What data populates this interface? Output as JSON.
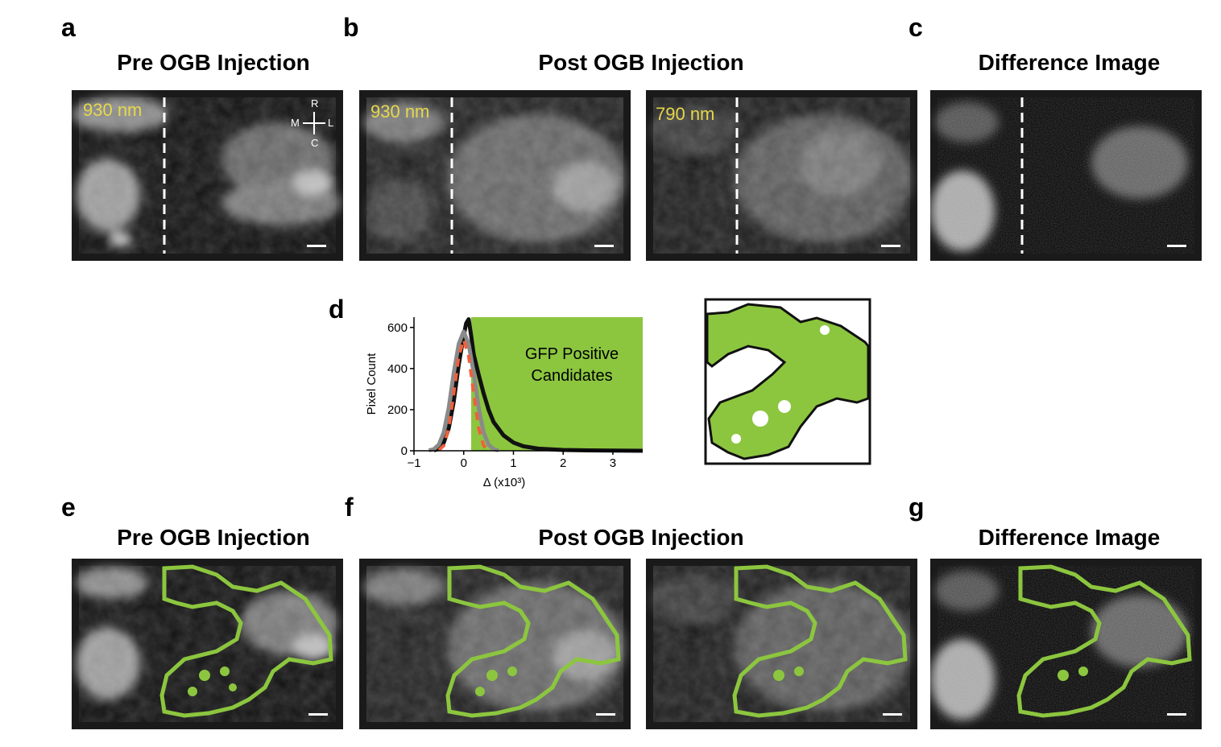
{
  "panel_letters": {
    "a": "a",
    "b": "b",
    "c": "c",
    "d": "d",
    "e": "e",
    "f": "f",
    "g": "g"
  },
  "titles": {
    "pre_top": "Pre OGB Injection",
    "post_top": "Post OGB Injection",
    "diff_top": "Difference Image",
    "pre_bottom": "Pre OGB Injection",
    "post_bottom": "Post OGB Injection",
    "diff_bottom": "Difference Image"
  },
  "wavelengths": {
    "a": "930 nm",
    "b1": "930 nm",
    "b2": "790 nm"
  },
  "compass": {
    "up": "R",
    "down": "C",
    "left": "M",
    "right": "L"
  },
  "colors": {
    "gfp_green": "#8cc63f",
    "orange_dash": "#f0603a",
    "gray_curve": "#8a8a8a",
    "wavelength_label": "#e6d84a"
  },
  "chart_data": {
    "type": "line",
    "xlabel": "Δ (x10³)",
    "ylabel": "Pixel Count",
    "xlim": [
      -1,
      3.6
    ],
    "ylim": [
      0,
      650
    ],
    "xticks": [
      "−1",
      "0",
      "1",
      "2",
      "3"
    ],
    "xtick_values": [
      -1,
      0,
      1,
      2,
      3
    ],
    "yticks": [
      "0",
      "200",
      "400",
      "600"
    ],
    "ytick_values": [
      0,
      200,
      400,
      600
    ],
    "shaded_region": {
      "label_line1": "GFP Positive",
      "label_line2": "Candidates",
      "x_from": 0.15,
      "x_to": 3.6
    },
    "series": [
      {
        "x": [
          -0.6,
          -0.5,
          -0.4,
          -0.3,
          -0.2,
          -0.1,
          0.0,
          0.05,
          0.1,
          0.15,
          0.2,
          0.3,
          0.4,
          0.5,
          0.6,
          0.8,
          1.0,
          1.2,
          1.5,
          2.0,
          2.5,
          3.0,
          3.6
        ],
        "values": [
          2,
          10,
          40,
          110,
          240,
          420,
          560,
          620,
          640,
          560,
          470,
          370,
          280,
          200,
          140,
          75,
          40,
          22,
          10,
          4,
          2,
          1,
          0
        ]
      },
      {
        "x": [
          -0.7,
          -0.6,
          -0.5,
          -0.4,
          -0.3,
          -0.2,
          -0.1,
          0.0,
          0.1,
          0.2,
          0.3,
          0.4,
          0.5,
          0.6,
          0.7
        ],
        "values": [
          2,
          8,
          30,
          90,
          210,
          380,
          520,
          580,
          520,
          380,
          210,
          90,
          30,
          8,
          2
        ]
      },
      {
        "x": [
          -0.5,
          -0.4,
          -0.3,
          -0.2,
          -0.1,
          0.0,
          0.1,
          0.2,
          0.3,
          0.4,
          0.5
        ],
        "values": [
          3,
          25,
          110,
          280,
          460,
          540,
          460,
          280,
          110,
          25,
          3
        ]
      }
    ]
  }
}
